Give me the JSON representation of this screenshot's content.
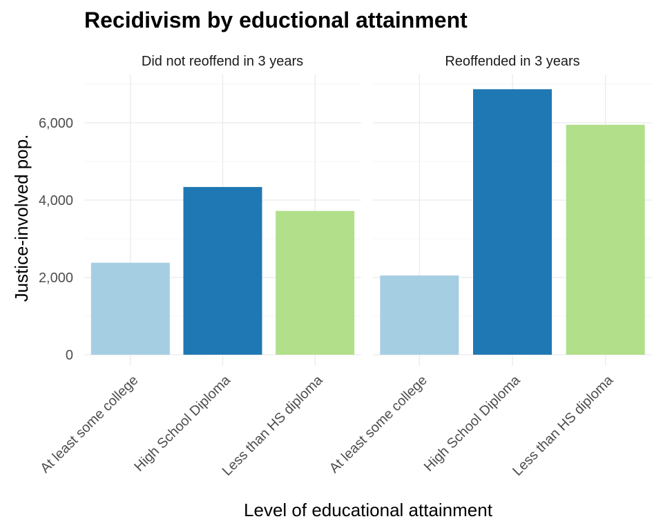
{
  "chart_data": {
    "type": "bar",
    "title": "Recidivism by eductional attainment",
    "xlabel": "Level of educational attainment",
    "ylabel": "Justice-involved pop.",
    "categories": [
      "At least some college",
      "High School Diploma",
      "Less than HS diploma"
    ],
    "ylim": [
      0,
      7200
    ],
    "yticks": [
      0,
      2000,
      4000,
      6000
    ],
    "ytick_labels": [
      "0",
      "2,000",
      "4,000",
      "6,000"
    ],
    "grid": true,
    "legend": "none",
    "colors": [
      "#a6cee3",
      "#1f78b4",
      "#b2df8a"
    ],
    "panels": [
      {
        "label": "Did not reoffend in 3 years",
        "values": [
          2380,
          4340,
          3720
        ]
      },
      {
        "label": "Reoffended in 3 years",
        "values": [
          2050,
          6870,
          5950
        ]
      }
    ]
  }
}
